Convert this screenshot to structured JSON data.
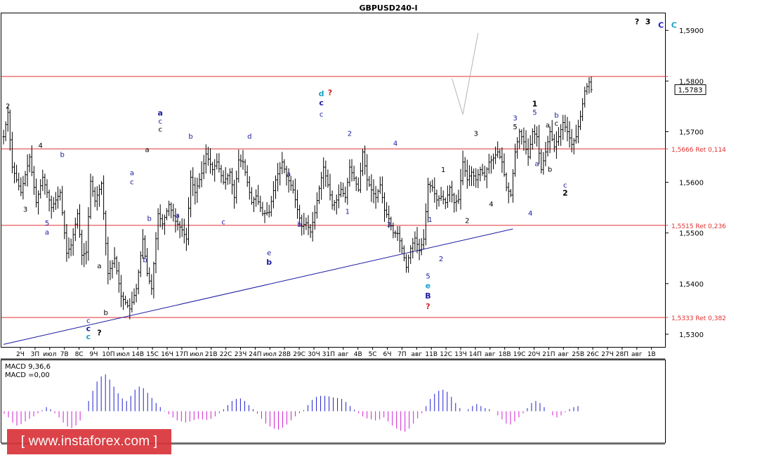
{
  "chart_data": {
    "type": "ohlc",
    "title": "GBPUSD240-I",
    "symbol": "GBPUSD",
    "timeframe_minutes": 240,
    "ylim": [
      1.5275,
      1.5935
    ],
    "y_ticks": [
      "1,5300",
      "1,5400",
      "1,5500",
      "1,5600",
      "1,5700",
      "1,5800",
      "1,5900"
    ],
    "x_labels": [
      "2Ч",
      "3П",
      "июл",
      "7В",
      "8С",
      "9Ч",
      "10П",
      "июл",
      "14В",
      "15С",
      "16Ч",
      "17П",
      "июл",
      "21В",
      "22С",
      "23Ч",
      "24П",
      "июл",
      "28В",
      "29С",
      "30Ч",
      "31П",
      "авг",
      "4В",
      "5С",
      "6Ч",
      "7П",
      "авг",
      "11В",
      "12С",
      "13Ч",
      "14П",
      "авг",
      "18В",
      "19С",
      "20Ч",
      "21П",
      "авг",
      "25В",
      "26С",
      "27Ч",
      "28П",
      "авг",
      "1В"
    ],
    "current_price": "1,5783",
    "current_price_value": 1.5783,
    "levels": [
      {
        "price": 1.5809,
        "label": "",
        "color": "#e03030"
      },
      {
        "price": 1.5666,
        "label": "1,5666 Ret 0,114",
        "color": "#e03030"
      },
      {
        "price": 1.5515,
        "label": "1,5515 Ret 0,236",
        "color": "#e03030"
      },
      {
        "price": 1.5333,
        "label": "1,5333 Ret 0,382",
        "color": "#e03030"
      }
    ],
    "trendline": {
      "from": {
        "bar": 0,
        "price": 1.528
      },
      "to": {
        "bar": 234,
        "price": 1.5508
      },
      "color": "#1a1aa0"
    },
    "forecast_path": [
      {
        "bar": 206,
        "price": 1.5805
      },
      {
        "bar": 211,
        "price": 1.5734
      },
      {
        "bar": 218,
        "price": 1.5895
      }
    ],
    "price_path": [
      {
        "bar": 0,
        "price": 1.569
      },
      {
        "bar": 2,
        "price": 1.5738
      },
      {
        "bar": 4,
        "price": 1.563
      },
      {
        "bar": 8,
        "price": 1.558
      },
      {
        "bar": 12,
        "price": 1.565
      },
      {
        "bar": 15,
        "price": 1.556
      },
      {
        "bar": 18,
        "price": 1.561
      },
      {
        "bar": 22,
        "price": 1.555
      },
      {
        "bar": 26,
        "price": 1.558
      },
      {
        "bar": 29,
        "price": 1.546
      },
      {
        "bar": 31,
        "price": 1.5476
      },
      {
        "bar": 34,
        "price": 1.5538
      },
      {
        "bar": 36,
        "price": 1.5456
      },
      {
        "bar": 38,
        "price": 1.5462
      },
      {
        "bar": 40,
        "price": 1.5602
      },
      {
        "bar": 42,
        "price": 1.5563
      },
      {
        "bar": 45,
        "price": 1.5598
      },
      {
        "bar": 48,
        "price": 1.542
      },
      {
        "bar": 51,
        "price": 1.545
      },
      {
        "bar": 54,
        "price": 1.5375
      },
      {
        "bar": 58,
        "price": 1.535
      },
      {
        "bar": 61,
        "price": 1.539
      },
      {
        "bar": 64,
        "price": 1.5488
      },
      {
        "bar": 66,
        "price": 1.542
      },
      {
        "bar": 68,
        "price": 1.539
      },
      {
        "bar": 71,
        "price": 1.5538
      },
      {
        "bar": 73,
        "price": 1.5518
      },
      {
        "bar": 76,
        "price": 1.5556
      },
      {
        "bar": 79,
        "price": 1.5523
      },
      {
        "bar": 82,
        "price": 1.5506
      },
      {
        "bar": 84,
        "price": 1.5488
      },
      {
        "bar": 86,
        "price": 1.561
      },
      {
        "bar": 88,
        "price": 1.558
      },
      {
        "bar": 91,
        "price": 1.5618
      },
      {
        "bar": 93,
        "price": 1.5656
      },
      {
        "bar": 96,
        "price": 1.5625
      },
      {
        "bar": 98,
        "price": 1.564
      },
      {
        "bar": 101,
        "price": 1.56
      },
      {
        "bar": 104,
        "price": 1.562
      },
      {
        "bar": 106,
        "price": 1.557
      },
      {
        "bar": 108,
        "price": 1.5644
      },
      {
        "bar": 110,
        "price": 1.564
      },
      {
        "bar": 112,
        "price": 1.56
      },
      {
        "bar": 114,
        "price": 1.556
      },
      {
        "bar": 116,
        "price": 1.5573
      },
      {
        "bar": 119,
        "price": 1.5538
      },
      {
        "bar": 122,
        "price": 1.5541
      },
      {
        "bar": 125,
        "price": 1.5605
      },
      {
        "bar": 128,
        "price": 1.564
      },
      {
        "bar": 130,
        "price": 1.5612
      },
      {
        "bar": 133,
        "price": 1.5585
      },
      {
        "bar": 135,
        "price": 1.5546
      },
      {
        "bar": 137,
        "price": 1.5513
      },
      {
        "bar": 139,
        "price": 1.552
      },
      {
        "bar": 141,
        "price": 1.5502
      },
      {
        "bar": 143,
        "price": 1.554
      },
      {
        "bar": 145,
        "price": 1.5588
      },
      {
        "bar": 147,
        "price": 1.563
      },
      {
        "bar": 149,
        "price": 1.5595
      },
      {
        "bar": 151,
        "price": 1.5555
      },
      {
        "bar": 153,
        "price": 1.5565
      },
      {
        "bar": 155,
        "price": 1.5586
      },
      {
        "bar": 157,
        "price": 1.557
      },
      {
        "bar": 159,
        "price": 1.563
      },
      {
        "bar": 161,
        "price": 1.5608
      },
      {
        "bar": 163,
        "price": 1.5585
      },
      {
        "bar": 165,
        "price": 1.566
      },
      {
        "bar": 167,
        "price": 1.5605
      },
      {
        "bar": 169,
        "price": 1.5585
      },
      {
        "bar": 171,
        "price": 1.557
      },
      {
        "bar": 173,
        "price": 1.5595
      },
      {
        "bar": 175,
        "price": 1.5545
      },
      {
        "bar": 177,
        "price": 1.5528
      },
      {
        "bar": 179,
        "price": 1.55
      },
      {
        "bar": 181,
        "price": 1.5499
      },
      {
        "bar": 183,
        "price": 1.547
      },
      {
        "bar": 185,
        "price": 1.5432
      },
      {
        "bar": 187,
        "price": 1.547
      },
      {
        "bar": 189,
        "price": 1.549
      },
      {
        "bar": 191,
        "price": 1.5465
      },
      {
        "bar": 193,
        "price": 1.5488
      },
      {
        "bar": 195,
        "price": 1.5596
      },
      {
        "bar": 197,
        "price": 1.559
      },
      {
        "bar": 199,
        "price": 1.5565
      },
      {
        "bar": 201,
        "price": 1.5572
      },
      {
        "bar": 203,
        "price": 1.556
      },
      {
        "bar": 205,
        "price": 1.559
      },
      {
        "bar": 207,
        "price": 1.556
      },
      {
        "bar": 209,
        "price": 1.5566
      },
      {
        "bar": 211,
        "price": 1.564
      },
      {
        "bar": 213,
        "price": 1.5605
      },
      {
        "bar": 215,
        "price": 1.562
      },
      {
        "bar": 217,
        "price": 1.5605
      },
      {
        "bar": 219,
        "price": 1.5625
      },
      {
        "bar": 221,
        "price": 1.5612
      },
      {
        "bar": 223,
        "price": 1.564
      },
      {
        "bar": 225,
        "price": 1.5648
      },
      {
        "bar": 227,
        "price": 1.566
      },
      {
        "bar": 229,
        "price": 1.564
      },
      {
        "bar": 231,
        "price": 1.559
      },
      {
        "bar": 233,
        "price": 1.5575
      },
      {
        "bar": 235,
        "price": 1.566
      },
      {
        "bar": 237,
        "price": 1.57
      },
      {
        "bar": 239,
        "price": 1.568
      },
      {
        "bar": 241,
        "price": 1.565
      },
      {
        "bar": 243,
        "price": 1.57
      },
      {
        "bar": 245,
        "price": 1.569
      },
      {
        "bar": 247,
        "price": 1.5625
      },
      {
        "bar": 249,
        "price": 1.566
      },
      {
        "bar": 251,
        "price": 1.57
      },
      {
        "bar": 253,
        "price": 1.567
      },
      {
        "bar": 255,
        "price": 1.569
      },
      {
        "bar": 257,
        "price": 1.5718
      },
      {
        "bar": 259,
        "price": 1.57
      },
      {
        "bar": 261,
        "price": 1.5675
      },
      {
        "bar": 263,
        "price": 1.569
      },
      {
        "bar": 265,
        "price": 1.573
      },
      {
        "bar": 267,
        "price": 1.578
      },
      {
        "bar": 269,
        "price": 1.5798
      },
      {
        "bar": 270,
        "price": 1.5783
      }
    ],
    "wave_labels": [
      {
        "text": "2",
        "bar": 2,
        "price": 1.5746,
        "color": "#000000"
      },
      {
        "text": "4",
        "bar": 17,
        "price": 1.5668,
        "color": "#000000"
      },
      {
        "text": "3",
        "bar": 10,
        "price": 1.5542,
        "color": "#000000"
      },
      {
        "text": "5",
        "bar": 20,
        "price": 1.5515,
        "color": "#1a1aa0"
      },
      {
        "text": "a",
        "bar": 20,
        "price": 1.5497,
        "color": "#1a1aa0"
      },
      {
        "text": "b",
        "bar": 27,
        "price": 1.565,
        "color": "#1a1aa0"
      },
      {
        "text": "a",
        "bar": 44,
        "price": 1.543,
        "color": "#000000"
      },
      {
        "text": "b",
        "bar": 47,
        "price": 1.5338,
        "color": "#000000"
      },
      {
        "text": "c",
        "bar": 39,
        "price": 1.5322,
        "color": "#1a1aa0"
      },
      {
        "text": "c",
        "bar": 39,
        "price": 1.5306,
        "color": "#1a1aa0",
        "bold": true
      },
      {
        "text": "c",
        "bar": 39,
        "price": 1.529,
        "color": "#1aa0c8",
        "bold": true
      },
      {
        "text": "?",
        "bar": 44,
        "price": 1.5298,
        "color": "#000000",
        "bold": true
      },
      {
        "text": "a",
        "bar": 59,
        "price": 1.5614,
        "color": "#1a1aa0"
      },
      {
        "text": "c",
        "bar": 59,
        "price": 1.5596,
        "color": "#1a1aa0"
      },
      {
        "text": "b",
        "bar": 67,
        "price": 1.5524,
        "color": "#1a1aa0"
      },
      {
        "text": "b",
        "bar": 65,
        "price": 1.5442,
        "color": "#1a1aa0"
      },
      {
        "text": "a",
        "bar": 66,
        "price": 1.566,
        "color": "#000000"
      },
      {
        "text": "a",
        "bar": 72,
        "price": 1.5732,
        "color": "#1a1aa0",
        "bold": true
      },
      {
        "text": "c",
        "bar": 72,
        "price": 1.5716,
        "color": "#1a1aa0"
      },
      {
        "text": "c",
        "bar": 72,
        "price": 1.57,
        "color": "#000000"
      },
      {
        "text": "b",
        "bar": 86,
        "price": 1.5686,
        "color": "#1a1aa0"
      },
      {
        "text": "a",
        "bar": 80,
        "price": 1.553,
        "color": "#1a1aa0"
      },
      {
        "text": "c",
        "bar": 101,
        "price": 1.5517,
        "color": "#1a1aa0"
      },
      {
        "text": "d",
        "bar": 113,
        "price": 1.5686,
        "color": "#1a1aa0"
      },
      {
        "text": "e",
        "bar": 122,
        "price": 1.5456,
        "color": "#1a1aa0"
      },
      {
        "text": "b",
        "bar": 122,
        "price": 1.5437,
        "color": "#1a1aa0",
        "bold": true
      },
      {
        "text": "a",
        "bar": 131,
        "price": 1.5612,
        "color": "#1a1aa0"
      },
      {
        "text": "b",
        "bar": 136,
        "price": 1.5512,
        "color": "#1a1aa0"
      },
      {
        "text": "d",
        "bar": 146,
        "price": 1.577,
        "color": "#1aa0c8",
        "bold": true
      },
      {
        "text": "?",
        "bar": 150,
        "price": 1.5772,
        "color": "#d02020",
        "bold": true
      },
      {
        "text": "c",
        "bar": 146,
        "price": 1.5752,
        "color": "#1a1aa0",
        "bold": true
      },
      {
        "text": "c",
        "bar": 146,
        "price": 1.573,
        "color": "#1a1aa0"
      },
      {
        "text": "2",
        "bar": 159,
        "price": 1.5692,
        "color": "#1a1aa0"
      },
      {
        "text": "1",
        "bar": 158,
        "price": 1.5538,
        "color": "#1a1aa0"
      },
      {
        "text": "4",
        "bar": 180,
        "price": 1.5672,
        "color": "#1a1aa0"
      },
      {
        "text": "3",
        "bar": 177,
        "price": 1.5512,
        "color": "#1a1aa0"
      },
      {
        "text": "1",
        "bar": 196,
        "price": 1.5522,
        "color": "#1a1aa0"
      },
      {
        "text": "2",
        "bar": 201,
        "price": 1.5444,
        "color": "#1a1aa0"
      },
      {
        "text": "5",
        "bar": 195,
        "price": 1.541,
        "color": "#1a1aa0"
      },
      {
        "text": "e",
        "bar": 195,
        "price": 1.5391,
        "color": "#1aa0c8",
        "bold": true
      },
      {
        "text": "B",
        "bar": 195,
        "price": 1.5371,
        "color": "#1a1aa0",
        "bold": true
      },
      {
        "text": "?",
        "bar": 195,
        "price": 1.535,
        "color": "#d02020",
        "bold": true
      },
      {
        "text": "1",
        "bar": 202,
        "price": 1.562,
        "color": "#000000"
      },
      {
        "text": "2",
        "bar": 213,
        "price": 1.552,
        "color": "#000000"
      },
      {
        "text": "3",
        "bar": 217,
        "price": 1.5692,
        "color": "#000000"
      },
      {
        "text": "4",
        "bar": 224,
        "price": 1.5552,
        "color": "#000000"
      },
      {
        "text": "3",
        "bar": 235,
        "price": 1.5722,
        "color": "#1a1aa0"
      },
      {
        "text": "5",
        "bar": 235,
        "price": 1.5705,
        "color": "#000000"
      },
      {
        "text": "4",
        "bar": 242,
        "price": 1.5534,
        "color": "#1a1aa0"
      },
      {
        "text": "1",
        "bar": 244,
        "price": 1.575,
        "color": "#000000",
        "bold": true
      },
      {
        "text": "5",
        "bar": 244,
        "price": 1.5733,
        "color": "#1a1aa0"
      },
      {
        "text": "a",
        "bar": 250,
        "price": 1.5708,
        "color": "#000000"
      },
      {
        "text": "b",
        "bar": 254,
        "price": 1.5728,
        "color": "#1a1aa0"
      },
      {
        "text": "c",
        "bar": 254,
        "price": 1.5712,
        "color": "#000000"
      },
      {
        "text": "a",
        "bar": 245,
        "price": 1.5632,
        "color": "#1a1aa0"
      },
      {
        "text": "b",
        "bar": 251,
        "price": 1.5621,
        "color": "#000000"
      },
      {
        "text": "c",
        "bar": 258,
        "price": 1.559,
        "color": "#1a1aa0"
      },
      {
        "text": "2",
        "bar": 258,
        "price": 1.5574,
        "color": "#000000",
        "bold": true
      },
      {
        "text": "?",
        "bar": 291,
        "price": 1.5912,
        "color": "#000000",
        "bold": true
      },
      {
        "text": "3",
        "bar": 296,
        "price": 1.5912,
        "color": "#000000",
        "bold": true
      },
      {
        "text": "C",
        "bar": 302,
        "price": 1.5905,
        "color": "#1a1acc",
        "bold": true
      },
      {
        "text": "C",
        "bar": 308,
        "price": 1.5905,
        "color": "#1aa0c8",
        "bold": true
      }
    ],
    "macd": {
      "label_1": "MACD 9,36,6",
      "label_2": "MACD =0,00",
      "range": [
        -0.005,
        0.009
      ],
      "positive_color": "#2020d0",
      "negative_color": "#d020d0",
      "values": [
        -0.0005,
        -0.0012,
        -0.0022,
        -0.0028,
        -0.0025,
        -0.002,
        -0.0015,
        -0.001,
        -0.0004,
        0.0002,
        0.0008,
        0.0004,
        -0.0004,
        -0.0012,
        -0.0022,
        -0.003,
        -0.0033,
        -0.0028,
        -0.0018,
        0.0,
        0.002,
        0.004,
        0.0058,
        0.0068,
        0.0072,
        0.0062,
        0.0048,
        0.0035,
        0.0025,
        0.002,
        0.003,
        0.0042,
        0.0048,
        0.0045,
        0.0036,
        0.0026,
        0.0016,
        0.0008,
        0.0001,
        -0.0006,
        -0.0012,
        -0.0018,
        -0.002,
        -0.0022,
        -0.002,
        -0.0017,
        -0.0015,
        -0.0016,
        -0.0017,
        -0.0015,
        -0.001,
        -0.0004,
        0.0004,
        0.0012,
        0.002,
        0.0024,
        0.0025,
        0.002,
        0.0012,
        0.0004,
        -0.0005,
        -0.0015,
        -0.0024,
        -0.003,
        -0.0034,
        -0.0036,
        -0.0032,
        -0.0026,
        -0.0018,
        -0.001,
        -0.0004,
        0.0002,
        0.0012,
        0.0022,
        0.0028,
        0.003,
        0.003,
        0.0029,
        0.0027,
        0.0026,
        0.0024,
        0.0018,
        0.001,
        0.0003,
        -0.0004,
        -0.001,
        -0.0014,
        -0.0016,
        -0.0018,
        -0.0016,
        -0.0012,
        -0.002,
        -0.0028,
        -0.0034,
        -0.0038,
        -0.004,
        -0.0034,
        -0.0024,
        -0.0014,
        -0.0004,
        0.001,
        0.0024,
        0.0034,
        0.004,
        0.0042,
        0.0038,
        0.0028,
        0.0016,
        0.0006,
        0.0,
        0.0004,
        0.001,
        0.0014,
        0.001,
        0.0006,
        0.0004,
        0.0,
        -0.0008,
        -0.0016,
        -0.0024,
        -0.0026,
        -0.002,
        -0.0012,
        -0.0004,
        0.0006,
        0.0016,
        0.002,
        0.0016,
        0.0008,
        0.0,
        -0.0008,
        -0.0012,
        -0.0008,
        -0.0002,
        0.0004,
        0.0008,
        0.001
      ]
    }
  }
}
